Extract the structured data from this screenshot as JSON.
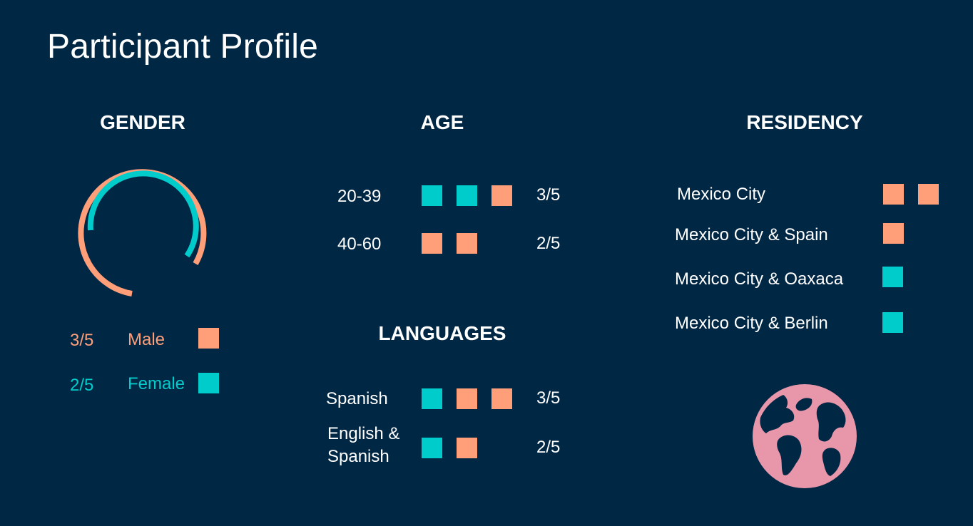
{
  "title": "Participant Profile",
  "colors": {
    "background": "#002744",
    "male": "#FF9F7A",
    "female": "#00CCCC",
    "globe": "#E896AA",
    "text": "#FFFFFF"
  },
  "gender": {
    "heading": "GENDER",
    "items": [
      {
        "fraction": "3/5",
        "label": "Male",
        "value": 0.6,
        "color": "orange"
      },
      {
        "fraction": "2/5",
        "label": "Female",
        "value": 0.4,
        "color": "teal"
      }
    ]
  },
  "age": {
    "heading": "AGE",
    "rows": [
      {
        "label": "20-39",
        "squares": [
          "teal",
          "teal",
          "orange"
        ],
        "fraction": "3/5"
      },
      {
        "label": "40-60",
        "squares": [
          "orange",
          "orange"
        ],
        "fraction": "2/5"
      }
    ]
  },
  "languages": {
    "heading": "LANGUAGES",
    "rows": [
      {
        "label_line1": "Spanish",
        "label_line2": "",
        "squares": [
          "teal",
          "orange",
          "orange"
        ],
        "fraction": "3/5"
      },
      {
        "label_line1": "English &",
        "label_line2": "Spanish",
        "squares": [
          "teal",
          "orange"
        ],
        "fraction": "2/5"
      }
    ]
  },
  "residency": {
    "heading": "RESIDENCY",
    "rows": [
      {
        "label": "Mexico City",
        "squares": [
          "orange",
          "orange"
        ]
      },
      {
        "label": "Mexico City & Spain",
        "squares": [
          "orange"
        ]
      },
      {
        "label": "Mexico City & Oaxaca",
        "squares": [
          "teal"
        ]
      },
      {
        "label": "Mexico City & Berlin",
        "squares": [
          "teal"
        ]
      }
    ]
  },
  "icons": {
    "globe": "globe-icon"
  }
}
